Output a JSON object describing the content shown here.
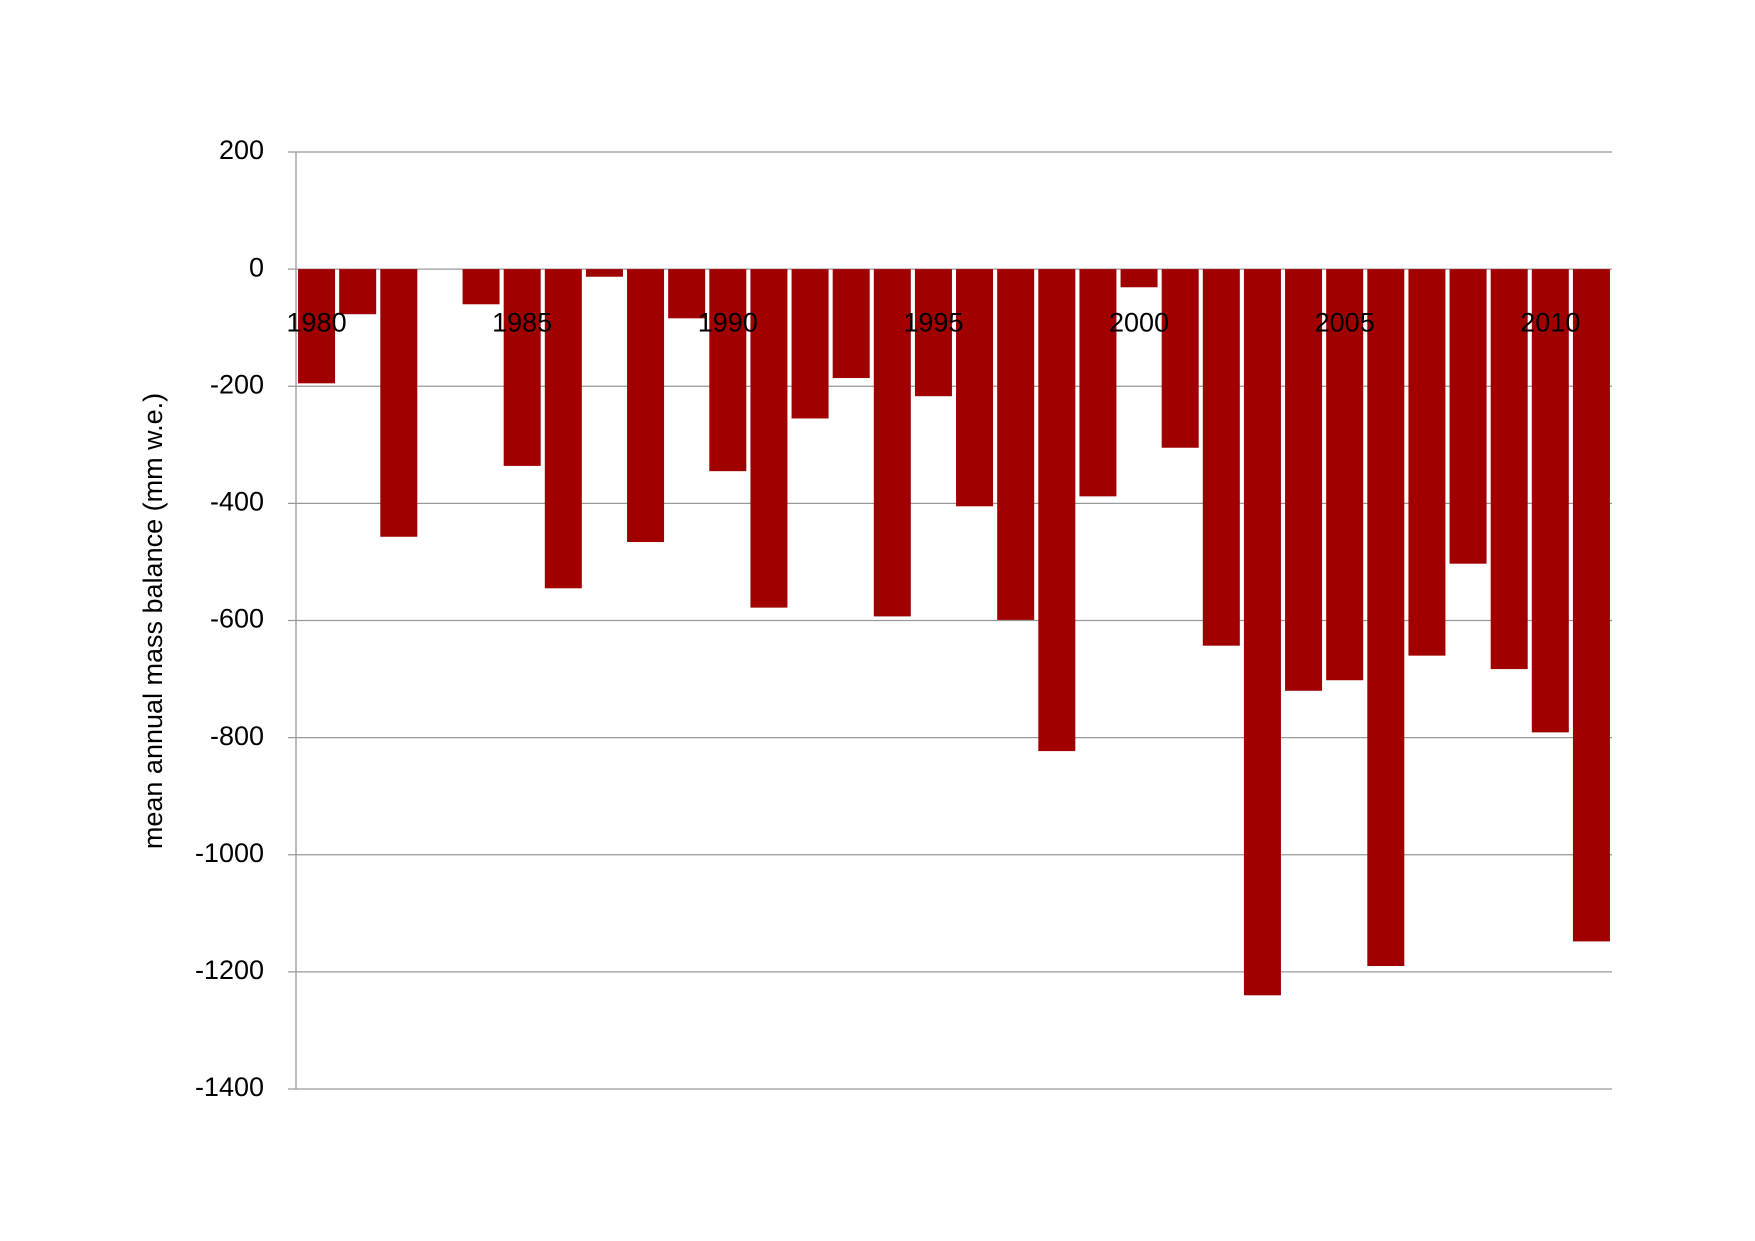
{
  "chart_data": {
    "type": "bar",
    "y_label": "mean annual mass balance (mm w.e.)",
    "categories": [
      "1980",
      null,
      null,
      null,
      null,
      "1985",
      null,
      null,
      null,
      null,
      "1990",
      null,
      null,
      null,
      null,
      "1995",
      null,
      null,
      null,
      null,
      "2000",
      null,
      null,
      null,
      null,
      "2005",
      null,
      null,
      null,
      null,
      "2010",
      null
    ],
    "values": [
      -195,
      -77,
      -457,
      0,
      -60,
      -336,
      -545,
      -13,
      -466,
      -84,
      -345,
      -578,
      -255,
      -186,
      -593,
      -217,
      -405,
      -599,
      -823,
      -388,
      -31,
      -305,
      -643,
      -1240,
      -720,
      -702,
      -1190,
      -660,
      -503,
      -683,
      -791,
      -1148
    ],
    "color": "#a00000",
    "ylim": [
      -1400,
      200
    ],
    "yticks": [
      -1400,
      -1200,
      -1000,
      -800,
      -600,
      -400,
      -200,
      0,
      200
    ],
    "grid": true
  }
}
